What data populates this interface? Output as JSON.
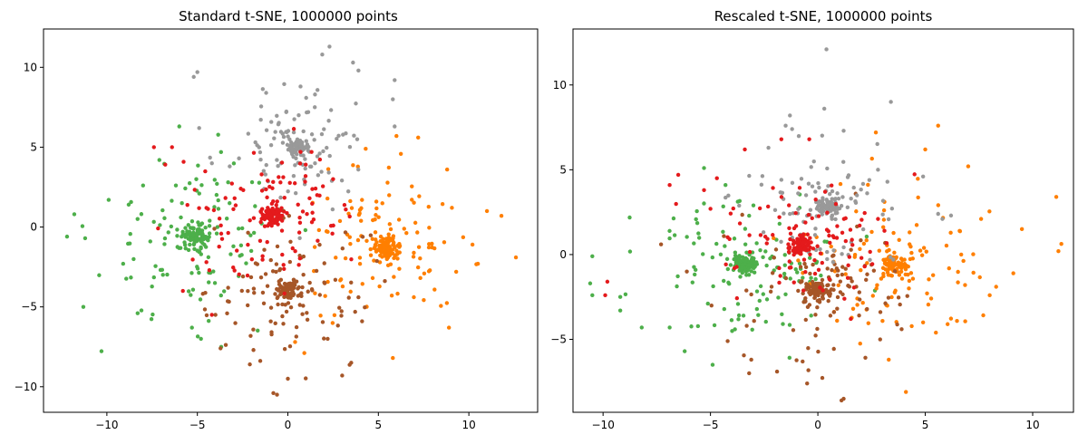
{
  "chart_data": [
    {
      "type": "scatter",
      "title": "Standard t-SNE, 1000000 points",
      "xlabel": "",
      "ylabel": "",
      "xlim": [
        -13.5,
        13.8
      ],
      "ylim": [
        -11.6,
        12.4
      ],
      "xticks": [
        -10,
        -5,
        0,
        5,
        10
      ],
      "yticks": [
        -10,
        -5,
        0,
        5,
        10
      ],
      "xtick_labels": [
        "−10",
        "−5",
        "0",
        "5",
        "10"
      ],
      "ytick_labels": [
        "−10",
        "−5",
        "0",
        "5",
        "10"
      ],
      "grid": false,
      "series": [
        {
          "color": "#4daf4a",
          "center": [
            -5.1,
            -0.6
          ],
          "dense_spread": 0.35,
          "dense_count": 90,
          "halo_spread": 2.6,
          "halo_count": 110,
          "outliers": [
            [
              -12.2,
              -0.6
            ],
            [
              -11.3,
              -5.0
            ],
            [
              -11.2,
              -0.7
            ],
            [
              -11.8,
              0.8
            ],
            [
              -9.9,
              1.7
            ],
            [
              -9.1,
              -2.3
            ],
            [
              -8.3,
              -5.4
            ],
            [
              -8.0,
              2.6
            ],
            [
              -7.1,
              4.2
            ],
            [
              -6.0,
              6.3
            ],
            [
              -5.3,
              -6.3
            ],
            [
              -4.8,
              -7.0
            ],
            [
              -3.3,
              2.8
            ]
          ]
        },
        {
          "color": "#ff7f00",
          "center": [
            5.4,
            -1.3
          ],
          "dense_spread": 0.35,
          "dense_count": 90,
          "halo_spread": 2.3,
          "halo_count": 110,
          "outliers": [
            [
              12.6,
              -1.9
            ],
            [
              11.0,
              1.0
            ],
            [
              11.8,
              0.7
            ],
            [
              10.5,
              -2.3
            ],
            [
              8.8,
              3.6
            ],
            [
              8.9,
              -6.3
            ],
            [
              7.2,
              5.6
            ],
            [
              6.0,
              5.7
            ],
            [
              5.8,
              -8.2
            ],
            [
              4.3,
              4.9
            ],
            [
              2.2,
              -0.3
            ],
            [
              0.4,
              -7.2
            ],
            [
              9.3,
              -2.8
            ],
            [
              10.2,
              -1.1
            ]
          ]
        },
        {
          "color": "#a65628",
          "center": [
            0.0,
            -4.0
          ],
          "dense_spread": 0.35,
          "dense_count": 80,
          "halo_spread": 2.1,
          "halo_count": 100,
          "outliers": [
            [
              -0.8,
              -10.4
            ],
            [
              -0.6,
              -10.5
            ],
            [
              0.0,
              -9.5
            ],
            [
              -2.1,
              -8.6
            ],
            [
              -1.9,
              -7.7
            ],
            [
              3.0,
              -9.3
            ],
            [
              3.5,
              -8.5
            ],
            [
              4.1,
              -5.9
            ],
            [
              3.9,
              -4.4
            ],
            [
              -3.3,
              -3.8
            ],
            [
              -4.0,
              -5.5
            ],
            [
              2.2,
              -7.0
            ]
          ]
        },
        {
          "color": "#999999",
          "center": [
            0.6,
            5.0
          ],
          "dense_spread": 0.3,
          "dense_count": 70,
          "halo_spread": 1.9,
          "halo_count": 90,
          "outliers": [
            [
              2.3,
              11.3
            ],
            [
              1.9,
              10.8
            ],
            [
              -5.0,
              9.7
            ],
            [
              -5.2,
              9.4
            ],
            [
              3.6,
              10.3
            ],
            [
              3.9,
              9.8
            ],
            [
              5.9,
              9.2
            ],
            [
              5.8,
              8.0
            ],
            [
              5.9,
              6.3
            ],
            [
              0.7,
              8.8
            ],
            [
              1.5,
              8.3
            ],
            [
              -1.2,
              8.4
            ],
            [
              0.6,
              7.0
            ],
            [
              -2.7,
              4.3
            ],
            [
              -4.9,
              6.2
            ]
          ]
        },
        {
          "color": "#e41a1c",
          "center": [
            -0.8,
            0.8
          ],
          "dense_spread": 0.3,
          "dense_count": 80,
          "halo_spread": 2.0,
          "halo_count": 100,
          "outliers": [
            [
              -7.4,
              5.0
            ],
            [
              -6.4,
              5.0
            ],
            [
              -4.5,
              1.2
            ],
            [
              -3.7,
              0.1
            ],
            [
              -2.6,
              2.4
            ],
            [
              0.7,
              4.7
            ],
            [
              3.2,
              1.1
            ],
            [
              1.2,
              1.8
            ],
            [
              2.5,
              3.0
            ],
            [
              -4.5,
              -2.2
            ],
            [
              -4.2,
              -5.5
            ],
            [
              -5.8,
              -4.0
            ]
          ]
        }
      ]
    },
    {
      "type": "scatter",
      "title": "Rescaled t-SNE, 1000000 points",
      "xlabel": "",
      "ylabel": "",
      "xlim": [
        -11.4,
        11.9
      ],
      "ylim": [
        -9.3,
        13.3
      ],
      "xticks": [
        -10,
        -5,
        0,
        5,
        10
      ],
      "yticks": [
        -5,
        0,
        5,
        10
      ],
      "xtick_labels": [
        "−10",
        "−5",
        "0",
        "5",
        "10"
      ],
      "ytick_labels": [
        "−5",
        "0",
        "5",
        "10"
      ],
      "grid": false,
      "series": [
        {
          "color": "#4daf4a",
          "center": [
            -3.4,
            -0.5
          ],
          "dense_spread": 0.25,
          "dense_count": 90,
          "halo_spread": 2.2,
          "halo_count": 120,
          "outliers": [
            [
              -10.5,
              -0.1
            ],
            [
              -10.6,
              -1.7
            ],
            [
              -10.5,
              -2.4
            ],
            [
              -9.2,
              -2.5
            ],
            [
              -9.2,
              -3.3
            ],
            [
              -8.2,
              -4.3
            ],
            [
              -6.9,
              -4.3
            ],
            [
              -6.2,
              -5.7
            ],
            [
              -4.3,
              4.1
            ],
            [
              -3.0,
              2.9
            ],
            [
              -5.3,
              5.1
            ],
            [
              -4.9,
              -6.5
            ]
          ]
        },
        {
          "color": "#ff7f00",
          "center": [
            3.6,
            -0.7
          ],
          "dense_spread": 0.3,
          "dense_count": 80,
          "halo_spread": 2.3,
          "halo_count": 110,
          "outliers": [
            [
              11.1,
              3.4
            ],
            [
              11.2,
              0.2
            ],
            [
              9.5,
              1.5
            ],
            [
              9.1,
              -1.1
            ],
            [
              8.3,
              -1.9
            ],
            [
              7.6,
              2.1
            ],
            [
              7.0,
              5.2
            ],
            [
              5.6,
              7.6
            ],
            [
              5.0,
              6.2
            ],
            [
              2.7,
              7.2
            ],
            [
              4.1,
              -8.1
            ],
            [
              3.3,
              -6.2
            ],
            [
              4.9,
              -4.0
            ],
            [
              8.0,
              -2.4
            ]
          ]
        },
        {
          "color": "#a65628",
          "center": [
            0.1,
            -2.1
          ],
          "dense_spread": 0.3,
          "dense_count": 80,
          "halo_spread": 1.8,
          "halo_count": 100,
          "outliers": [
            [
              1.1,
              -8.6
            ],
            [
              1.2,
              -8.5
            ],
            [
              -0.5,
              -7.6
            ],
            [
              -3.2,
              -7.0
            ],
            [
              -3.1,
              -6.2
            ],
            [
              -1.9,
              -6.9
            ],
            [
              -4.2,
              -5.1
            ],
            [
              -6.1,
              -1.0
            ],
            [
              -7.3,
              0.6
            ],
            [
              2.9,
              -5.0
            ],
            [
              3.9,
              -4.4
            ]
          ]
        },
        {
          "color": "#999999",
          "center": [
            0.4,
            2.8
          ],
          "dense_spread": 0.25,
          "dense_count": 70,
          "halo_spread": 1.8,
          "halo_count": 90,
          "outliers": [
            [
              0.4,
              12.1
            ],
            [
              0.3,
              8.6
            ],
            [
              1.2,
              7.3
            ],
            [
              3.4,
              9.0
            ],
            [
              -1.5,
              7.6
            ],
            [
              -1.2,
              7.4
            ],
            [
              -1.3,
              8.2
            ],
            [
              4.9,
              4.6
            ],
            [
              5.6,
              2.4
            ],
            [
              5.8,
              2.1
            ],
            [
              6.2,
              2.3
            ],
            [
              2.8,
              5.0
            ],
            [
              -2.3,
              6.3
            ]
          ]
        },
        {
          "color": "#e41a1c",
          "center": [
            -0.8,
            0.6
          ],
          "dense_spread": 0.25,
          "dense_count": 80,
          "halo_spread": 1.9,
          "halo_count": 100,
          "outliers": [
            [
              -6.5,
              4.7
            ],
            [
              -6.9,
              4.1
            ],
            [
              -5.3,
              3.8
            ],
            [
              -4.7,
              4.5
            ],
            [
              -5.0,
              2.7
            ],
            [
              -3.4,
              6.2
            ],
            [
              -9.8,
              -1.6
            ],
            [
              -9.9,
              -2.4
            ],
            [
              -1.7,
              6.8
            ],
            [
              -0.4,
              6.8
            ],
            [
              2.8,
              2.1
            ],
            [
              3.1,
              1.4
            ]
          ]
        }
      ]
    }
  ]
}
